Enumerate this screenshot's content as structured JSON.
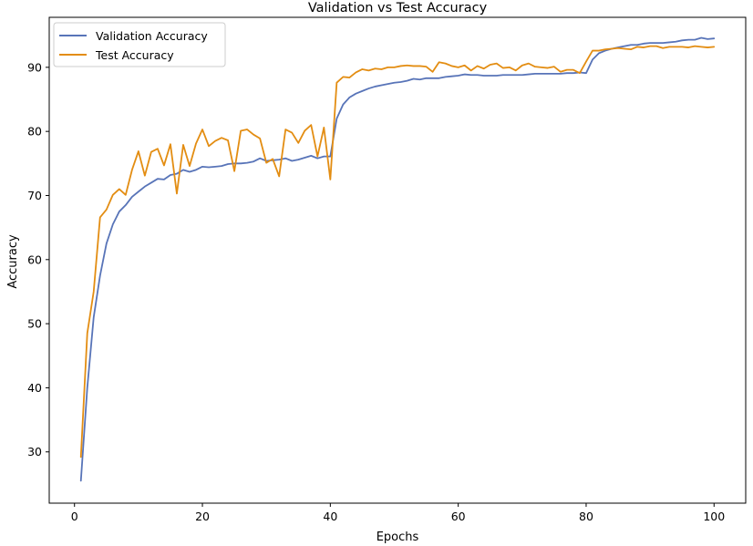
{
  "chart_data": {
    "type": "line",
    "title": "Validation vs Test Accuracy",
    "xlabel": "Epochs",
    "ylabel": "Accuracy",
    "xlim": [
      -3.95,
      104.95
    ],
    "ylim": [
      22.0,
      97.8
    ],
    "xticks": [
      0,
      20,
      40,
      60,
      80,
      100
    ],
    "yticks": [
      30,
      40,
      50,
      60,
      70,
      80,
      90
    ],
    "grid": false,
    "legend_position": "upper-left",
    "x": [
      1,
      2,
      3,
      4,
      5,
      6,
      7,
      8,
      9,
      10,
      11,
      12,
      13,
      14,
      15,
      16,
      17,
      18,
      19,
      20,
      21,
      22,
      23,
      24,
      25,
      26,
      27,
      28,
      29,
      30,
      31,
      32,
      33,
      34,
      35,
      36,
      37,
      38,
      39,
      40,
      41,
      42,
      43,
      44,
      45,
      46,
      47,
      48,
      49,
      50,
      51,
      52,
      53,
      54,
      55,
      56,
      57,
      58,
      59,
      60,
      61,
      62,
      63,
      64,
      65,
      66,
      67,
      68,
      69,
      70,
      71,
      72,
      73,
      74,
      75,
      76,
      77,
      78,
      79,
      80,
      81,
      82,
      83,
      84,
      85,
      86,
      87,
      88,
      89,
      90,
      91,
      92,
      93,
      94,
      95,
      96,
      97,
      98,
      99,
      100
    ],
    "series": [
      {
        "name": "Validation Accuracy",
        "color": "#5874b8",
        "values": [
          25.5,
          40.0,
          51.0,
          57.5,
          62.5,
          65.5,
          67.5,
          68.5,
          69.8,
          70.6,
          71.4,
          72.0,
          72.6,
          72.5,
          73.2,
          73.4,
          74.0,
          73.7,
          74.0,
          74.5,
          74.4,
          74.5,
          74.6,
          74.9,
          75.0,
          75.0,
          75.1,
          75.3,
          75.8,
          75.4,
          75.5,
          75.6,
          75.8,
          75.4,
          75.6,
          75.9,
          76.2,
          75.8,
          76.1,
          76.1,
          82.0,
          84.2,
          85.3,
          85.9,
          86.3,
          86.7,
          87.0,
          87.2,
          87.4,
          87.6,
          87.7,
          87.9,
          88.2,
          88.1,
          88.3,
          88.3,
          88.3,
          88.5,
          88.6,
          88.7,
          88.9,
          88.8,
          88.8,
          88.7,
          88.7,
          88.7,
          88.8,
          88.8,
          88.8,
          88.8,
          88.9,
          89.0,
          89.0,
          89.0,
          89.0,
          89.0,
          89.1,
          89.1,
          89.2,
          89.1,
          91.2,
          92.2,
          92.6,
          92.9,
          93.1,
          93.3,
          93.5,
          93.5,
          93.7,
          93.8,
          93.8,
          93.8,
          93.9,
          94.0,
          94.2,
          94.3,
          94.3,
          94.6,
          94.4,
          94.5
        ]
      },
      {
        "name": "Test Accuracy",
        "color": "#e38d12",
        "values": [
          29.2,
          48.5,
          55.0,
          66.6,
          67.8,
          70.1,
          71.0,
          70.1,
          74.0,
          76.9,
          73.1,
          76.8,
          77.3,
          74.7,
          78.0,
          70.3,
          77.9,
          74.6,
          78.1,
          80.3,
          77.7,
          78.5,
          79.0,
          78.6,
          73.8,
          80.1,
          80.3,
          79.5,
          78.9,
          75.1,
          75.7,
          73.0,
          80.3,
          79.8,
          78.2,
          80.1,
          81.0,
          76.1,
          80.6,
          72.5,
          87.6,
          88.5,
          88.4,
          89.2,
          89.7,
          89.5,
          89.8,
          89.7,
          90.0,
          90.0,
          90.2,
          90.3,
          90.2,
          90.2,
          90.1,
          89.3,
          90.8,
          90.6,
          90.2,
          90.0,
          90.3,
          89.5,
          90.2,
          89.8,
          90.4,
          90.6,
          89.9,
          90.0,
          89.5,
          90.3,
          90.6,
          90.1,
          90.0,
          89.9,
          90.1,
          89.3,
          89.6,
          89.6,
          89.1,
          90.9,
          92.6,
          92.6,
          92.8,
          92.9,
          93.0,
          92.9,
          92.8,
          93.2,
          93.1,
          93.3,
          93.3,
          93.0,
          93.2,
          93.2,
          93.2,
          93.1,
          93.3,
          93.2,
          93.1,
          93.2
        ]
      }
    ]
  }
}
